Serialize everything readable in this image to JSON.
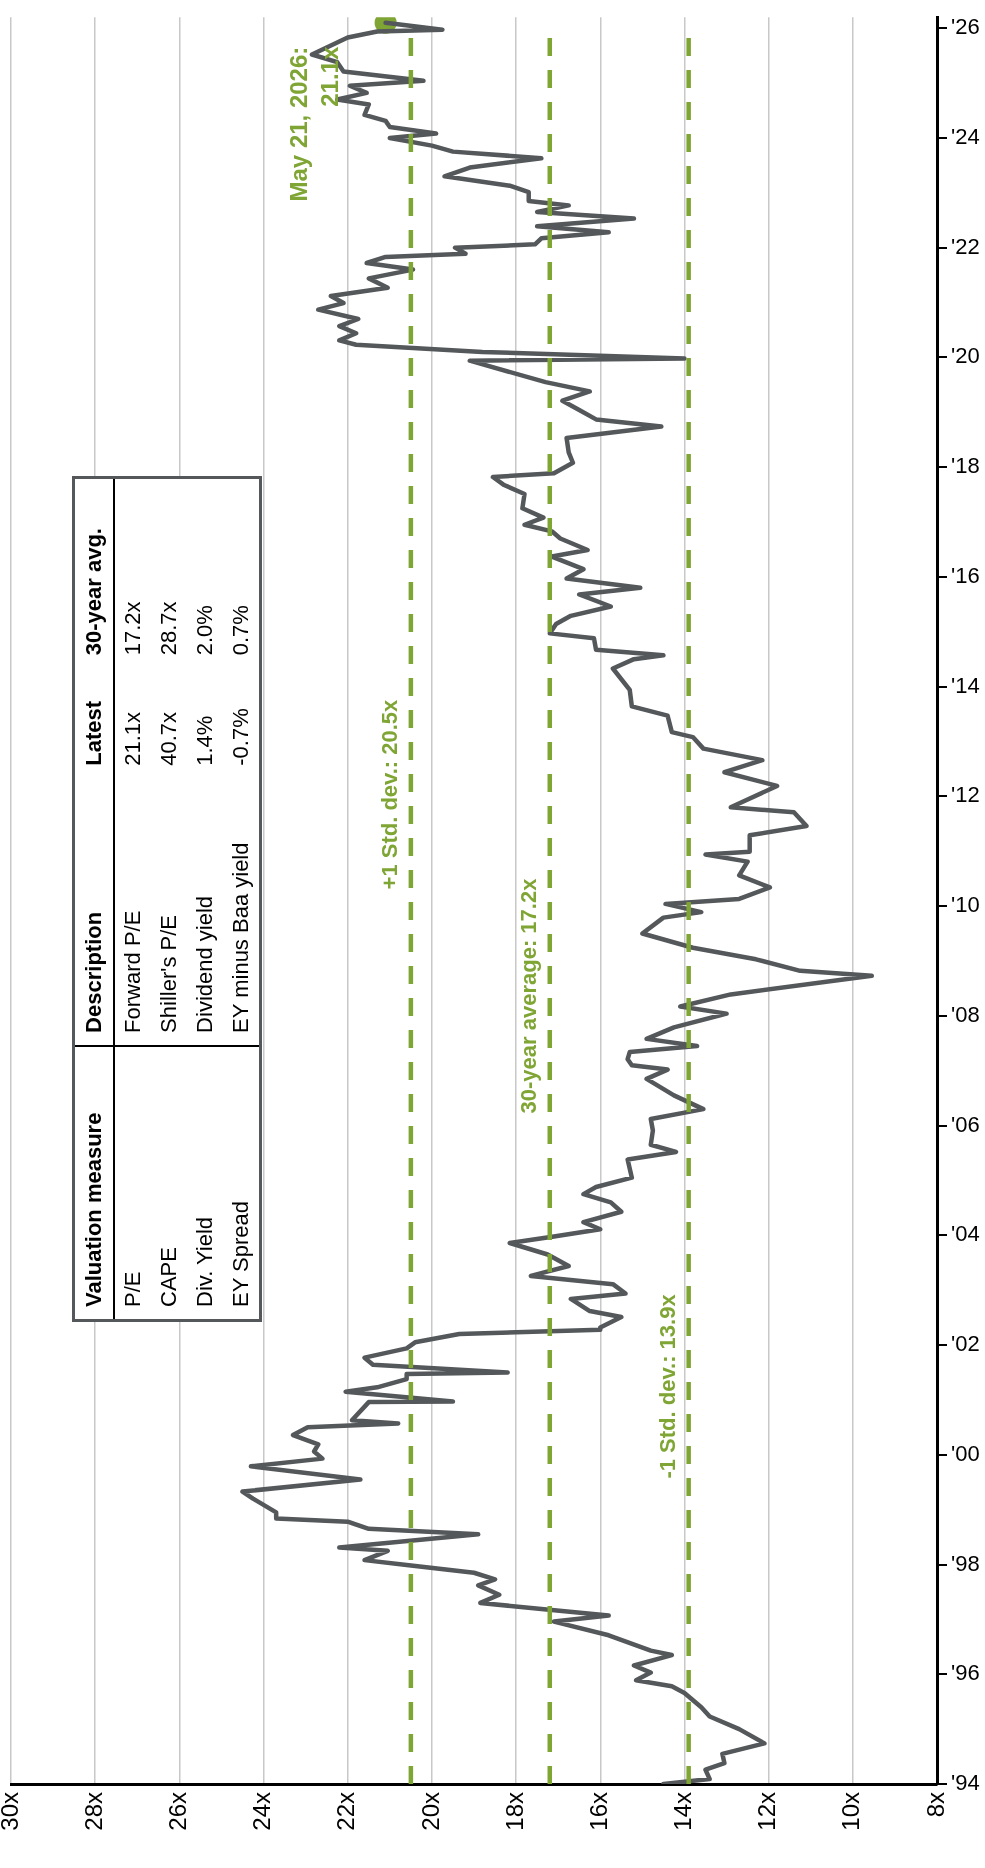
{
  "chart_data": [
    {
      "type": "line",
      "xlim": [
        30,
        8
      ],
      "ylim": [
        1994,
        2026.2
      ],
      "xticks": [
        {
          "value": 30,
          "label": "30x"
        },
        {
          "value": 28,
          "label": "28x"
        },
        {
          "value": 26,
          "label": "26x"
        },
        {
          "value": 24,
          "label": "24x"
        },
        {
          "value": 22,
          "label": "22x"
        },
        {
          "value": 20,
          "label": "20x"
        },
        {
          "value": 18,
          "label": "18x"
        },
        {
          "value": 16,
          "label": "16x"
        },
        {
          "value": 14,
          "label": "14x"
        },
        {
          "value": 12,
          "label": "12x"
        },
        {
          "value": 10,
          "label": "10x"
        },
        {
          "value": 8,
          "label": "8x"
        }
      ],
      "yticks": [
        {
          "value": 1994,
          "label": "'94"
        },
        {
          "value": 1996,
          "label": "'96"
        },
        {
          "value": 1998,
          "label": "'98"
        },
        {
          "value": 2000,
          "label": "'00"
        },
        {
          "value": 2002,
          "label": "'02"
        },
        {
          "value": 2004,
          "label": "'04"
        },
        {
          "value": 2006,
          "label": "'06"
        },
        {
          "value": 2008,
          "label": "'08"
        },
        {
          "value": 2010,
          "label": "'10"
        },
        {
          "value": 2012,
          "label": "'12"
        },
        {
          "value": 2014,
          "label": "'14"
        },
        {
          "value": 2016,
          "label": "'16"
        },
        {
          "value": 2018,
          "label": "'18"
        },
        {
          "value": 2020,
          "label": "'20"
        },
        {
          "value": 2022,
          "label": "'22"
        },
        {
          "value": 2024,
          "label": "'24"
        },
        {
          "value": 2026,
          "label": "'26"
        }
      ],
      "grid": "x",
      "legend": false,
      "marker": "none",
      "line_style": "solid",
      "series": [
        {
          "type": "line",
          "color": "#54585a",
          "values": [
            1994.0,
            1994.09,
            1994.26,
            1994.38,
            1994.55,
            1994.74,
            1995.0,
            1995.23,
            1995.4,
            1995.66,
            1995.78,
            1995.89,
            1996.03,
            1996.16,
            1996.35,
            1996.43,
            1996.71,
            1996.96,
            1997.07,
            1997.19,
            1997.3,
            1997.45,
            1997.62,
            1997.73,
            1997.85,
            1997.99,
            1998.08,
            1998.25,
            1998.31,
            1998.55,
            1998.65,
            1998.78,
            1998.84,
            1998.95,
            1999.2,
            1999.33,
            1999.55,
            1999.79,
            1999.93,
            2000.06,
            2000.19,
            2000.36,
            2000.5,
            2000.57,
            2000.63,
            2000.96,
            2000.97,
            2001.15,
            2001.23,
            2001.38,
            2001.47,
            2001.5,
            2001.64,
            2001.77,
            2001.94,
            2002.05,
            2002.2,
            2002.28,
            2002.32,
            2002.51,
            2002.62,
            2002.84,
            2002.94,
            2003.11,
            2003.26,
            2003.44,
            2003.65,
            2003.86,
            2003.98,
            2004.11,
            2004.24,
            2004.43,
            2004.6,
            2004.75,
            2004.88,
            2005.05,
            2005.38,
            2005.52,
            2005.65,
            2005.91,
            2006.12,
            2006.3,
            2006.55,
            2006.85,
            2007.02,
            2007.1,
            2007.21,
            2007.34,
            2007.45,
            2007.58,
            2007.79,
            2008.04,
            2008.17,
            2008.39,
            2008.73,
            2008.82,
            2009.03,
            2009.24,
            2009.5,
            2009.79,
            2009.89,
            2010.04,
            2010.13,
            2010.34,
            2010.56,
            2010.81,
            2010.94,
            2010.99,
            2011.29,
            2011.46,
            2011.71,
            2011.8,
            2012.19,
            2012.44,
            2012.66,
            2012.87,
            2013.08,
            2013.17,
            2013.47,
            2013.64,
            2013.94,
            2014.33,
            2014.5,
            2014.57,
            2014.67,
            2014.88,
            2014.97,
            2015.14,
            2015.29,
            2015.46,
            2015.68,
            2015.8,
            2015.97,
            2016.14,
            2016.37,
            2016.49,
            2016.7,
            2016.83,
            2016.95,
            2017.08,
            2017.25,
            2017.51,
            2017.68,
            2017.82,
            2017.89,
            2018.08,
            2018.27,
            2018.53,
            2018.74,
            2018.87,
            2019.04,
            2019.21,
            2019.38,
            2019.55,
            2019.94,
            2019.98,
            2020.1,
            2020.23,
            2020.31,
            2020.44,
            2020.57,
            2020.7,
            2020.87,
            2020.99,
            2021.12,
            2021.27,
            2021.44,
            2021.6,
            2021.72,
            2021.83,
            2021.89,
            2022.0,
            2022.06,
            2022.17,
            2022.28,
            2022.39,
            2022.53,
            2022.65,
            2022.77,
            2022.85,
            2023.01,
            2023.13,
            2023.3,
            2023.46,
            2023.63,
            2023.75,
            2023.86,
            2024.0,
            2024.08,
            2024.2,
            2024.31,
            2024.42,
            2024.61,
            2024.7,
            2024.82,
            2024.95,
            2025.04,
            2025.21,
            2025.38,
            2025.52,
            2025.72,
            2025.83,
            2025.94,
            2025.97,
            2026.1
          ],
          "x": [
            14.5,
            13.4,
            13.5,
            13.05,
            13.1,
            12.1,
            12.7,
            13.4,
            13.6,
            14.0,
            14.3,
            15.15,
            14.8,
            15.2,
            14.3,
            14.8,
            15.8,
            17.1,
            15.8,
            17.4,
            18.85,
            18.4,
            18.9,
            18.5,
            19.0,
            20.6,
            21.6,
            21.05,
            22.2,
            18.9,
            21.5,
            22.0,
            23.7,
            23.7,
            24.25,
            24.5,
            21.7,
            24.3,
            22.6,
            22.8,
            22.7,
            23.3,
            22.95,
            20.8,
            21.9,
            21.5,
            19.5,
            22.05,
            21.3,
            20.6,
            20.6,
            18.2,
            21.4,
            21.6,
            20.6,
            20.4,
            19.35,
            16.0,
            16.0,
            15.5,
            16.25,
            16.7,
            15.4,
            15.7,
            17.65,
            16.75,
            17.25,
            18.15,
            17.1,
            16.0,
            16.4,
            15.5,
            15.75,
            16.4,
            16.1,
            15.25,
            15.35,
            14.2,
            14.8,
            14.75,
            14.8,
            13.55,
            14.25,
            14.9,
            14.4,
            15.25,
            15.35,
            15.3,
            13.7,
            14.9,
            14.25,
            13.0,
            14.1,
            12.9,
            9.55,
            11.25,
            12.3,
            13.8,
            15.0,
            14.5,
            13.6,
            14.45,
            12.7,
            11.97,
            12.7,
            12.5,
            13.5,
            12.45,
            12.45,
            11.1,
            11.4,
            12.9,
            11.8,
            13.05,
            12.15,
            13.55,
            13.8,
            14.3,
            14.4,
            15.25,
            15.3,
            15.7,
            15.2,
            14.5,
            16.1,
            16.15,
            17.2,
            17.05,
            16.7,
            15.75,
            16.5,
            15.05,
            16.8,
            16.4,
            17.15,
            16.3,
            16.95,
            17.15,
            17.8,
            17.35,
            17.85,
            17.8,
            18.3,
            18.55,
            17.1,
            16.65,
            16.75,
            16.8,
            14.55,
            16.1,
            16.5,
            16.9,
            16.25,
            17.3,
            19.1,
            14.0,
            18.8,
            21.8,
            22.2,
            21.8,
            22.2,
            21.75,
            22.7,
            22.1,
            22.4,
            21.05,
            21.5,
            20.45,
            21.55,
            21.1,
            19.2,
            19.45,
            17.55,
            17.4,
            15.8,
            17.5,
            15.2,
            17.5,
            16.75,
            17.7,
            17.7,
            18.15,
            19.7,
            19.1,
            17.4,
            19.5,
            20.0,
            21.0,
            19.9,
            21.0,
            21.1,
            21.6,
            21.5,
            22.25,
            21.55,
            21.95,
            20.2,
            22.1,
            22.25,
            22.85,
            22.3,
            22.0,
            21.3,
            19.75,
            21.1
          ]
        },
        {
          "type": "scatter",
          "color": "#7fa534",
          "marker": "circle",
          "x": [
            21.1
          ],
          "values": [
            2026.1
          ]
        }
      ],
      "ref_lines": [
        {
          "axis": "x",
          "value": 20.5,
          "label": "+1 Std. dev.: 20.5x",
          "color": "#7fa534",
          "line_style": "dashed"
        },
        {
          "axis": "x",
          "value": 17.2,
          "label": "30-year average: 17.2x",
          "color": "#7fa534",
          "line_style": "dashed"
        },
        {
          "axis": "x",
          "value": 13.9,
          "label": "-1 Std. dev.: 13.9x",
          "color": "#7fa534",
          "line_style": "dashed"
        }
      ],
      "annotations": [
        {
          "text": "May 21, 2026:\n21.1x",
          "x": 21.1,
          "y": 2026.1
        }
      ]
    },
    {
      "type": "other",
      "categories": [
        "Valuation measure",
        "Description",
        "Latest",
        "30-year avg."
      ],
      "cell_labels": [
        [
          "P/E",
          "Forward P/E",
          "21.1x",
          "17.2x"
        ],
        [
          "CAPE",
          "Shiller's P/E",
          "40.7x",
          "28.7x"
        ],
        [
          "Div. Yield",
          "Dividend yield",
          "1.4%",
          "2.0%"
        ],
        [
          "EY Spread",
          "EY minus Baa yield",
          "-0.7%",
          "0.7%"
        ]
      ]
    }
  ]
}
